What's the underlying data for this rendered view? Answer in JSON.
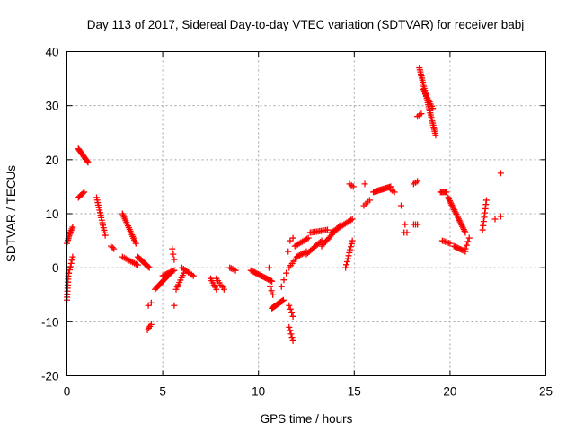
{
  "chart_data": {
    "type": "scatter",
    "title": "Day 113 of 2017, Sidereal Day-to-day VTEC variation (SDTVAR) for receiver babj",
    "xlabel": "GPS time / hours",
    "ylabel": "SDTVAR / TECUs",
    "xlim": [
      0,
      25
    ],
    "ylim": [
      -20,
      40
    ],
    "xticks": [
      0,
      5,
      10,
      15,
      20,
      25
    ],
    "yticks": [
      -20,
      -10,
      0,
      10,
      20,
      30,
      40
    ],
    "xtick_labels": [
      "0",
      "5",
      "10",
      "15",
      "20",
      "25"
    ],
    "ytick_labels": [
      "-20",
      "-10",
      "0",
      "10",
      "20",
      "30",
      "40"
    ],
    "grid": true,
    "marker": "plus",
    "color": "#ff0000",
    "segments": [
      {
        "x0": 0.0,
        "x1": 0.08,
        "y0": -6,
        "y1": -1,
        "n": 10
      },
      {
        "x0": 0.0,
        "x1": 0.12,
        "y0": 4.5,
        "y1": 6,
        "n": 6
      },
      {
        "x0": 0.1,
        "x1": 0.3,
        "y0": 6,
        "y1": 7.5,
        "n": 6
      },
      {
        "x0": 0.1,
        "x1": 0.3,
        "y0": -1,
        "y1": 2,
        "n": 6
      },
      {
        "x0": 0.6,
        "x1": 0.9,
        "y0": 13,
        "y1": 14,
        "n": 6
      },
      {
        "x0": 0.6,
        "x1": 1.1,
        "y0": 22,
        "y1": 19.5,
        "n": 14
      },
      {
        "x0": 1.55,
        "x1": 2.0,
        "y0": 13,
        "y1": 6,
        "n": 16
      },
      {
        "x0": 2.3,
        "x1": 2.45,
        "y0": 4,
        "y1": 3.5,
        "n": 3
      },
      {
        "x0": 2.9,
        "x1": 3.6,
        "y0": 10,
        "y1": 4.5,
        "n": 18
      },
      {
        "x0": 2.9,
        "x1": 3.7,
        "y0": 2,
        "y1": 0.5,
        "n": 10
      },
      {
        "x0": 3.7,
        "x1": 4.3,
        "y0": 2,
        "y1": 0,
        "n": 12
      },
      {
        "x0": 4.2,
        "x1": 4.4,
        "y0": -11.5,
        "y1": -10.5,
        "n": 4
      },
      {
        "x0": 4.25,
        "x1": 4.4,
        "y0": -7,
        "y1": -6.5,
        "n": 2
      },
      {
        "x0": 4.6,
        "x1": 5.4,
        "y0": -4,
        "y1": -1,
        "n": 16
      },
      {
        "x0": 5.0,
        "x1": 5.6,
        "y0": -1.5,
        "y1": -0.5,
        "n": 10
      },
      {
        "x0": 5.5,
        "x1": 5.6,
        "y0": 3.5,
        "y1": 1.5,
        "n": 3
      },
      {
        "x0": 5.55,
        "x1": 5.65,
        "y0": -7,
        "y1": -7,
        "n": 1
      },
      {
        "x0": 5.7,
        "x1": 6.1,
        "y0": -4,
        "y1": -1,
        "n": 8
      },
      {
        "x0": 6.0,
        "x1": 6.6,
        "y0": 0,
        "y1": -1.5,
        "n": 8
      },
      {
        "x0": 7.5,
        "x1": 7.8,
        "y0": -2,
        "y1": -4,
        "n": 6
      },
      {
        "x0": 7.8,
        "x1": 8.2,
        "y0": -2,
        "y1": -4,
        "n": 6
      },
      {
        "x0": 8.5,
        "x1": 8.8,
        "y0": 0,
        "y1": -0.5,
        "n": 5
      },
      {
        "x0": 9.6,
        "x1": 10.7,
        "y0": -0.5,
        "y1": -2.5,
        "n": 18
      },
      {
        "x0": 10.5,
        "x1": 10.6,
        "y0": 0,
        "y1": 0,
        "n": 1
      },
      {
        "x0": 10.6,
        "x1": 10.75,
        "y0": -3.5,
        "y1": -5,
        "n": 3
      },
      {
        "x0": 10.7,
        "x1": 11.3,
        "y0": -7.5,
        "y1": -6,
        "n": 14
      },
      {
        "x0": 11.2,
        "x1": 11.45,
        "y0": -3.5,
        "y1": -1,
        "n": 3
      },
      {
        "x0": 11.5,
        "x1": 11.6,
        "y0": 3,
        "y1": 3,
        "n": 1
      },
      {
        "x0": 11.6,
        "x1": 11.8,
        "y0": -7,
        "y1": -9,
        "n": 4
      },
      {
        "x0": 11.6,
        "x1": 11.8,
        "y0": -11,
        "y1": -13.5,
        "n": 5
      },
      {
        "x0": 11.6,
        "x1": 12.0,
        "y0": 0,
        "y1": 2,
        "n": 6
      },
      {
        "x0": 11.65,
        "x1": 11.8,
        "y0": 5,
        "y1": 5.5,
        "n": 2
      },
      {
        "x0": 12.0,
        "x1": 12.5,
        "y0": 2,
        "y1": 3,
        "n": 8
      },
      {
        "x0": 11.9,
        "x1": 12.6,
        "y0": 4,
        "y1": 5.5,
        "n": 10
      },
      {
        "x0": 12.5,
        "x1": 13.3,
        "y0": 2.5,
        "y1": 5,
        "n": 12
      },
      {
        "x0": 12.7,
        "x1": 13.6,
        "y0": 6.5,
        "y1": 7,
        "n": 12
      },
      {
        "x0": 13.3,
        "x1": 14.3,
        "y0": 4,
        "y1": 8,
        "n": 16
      },
      {
        "x0": 13.8,
        "x1": 14.9,
        "y0": 6.5,
        "y1": 9,
        "n": 16
      },
      {
        "x0": 14.55,
        "x1": 14.9,
        "y0": 0,
        "y1": 5,
        "n": 10
      },
      {
        "x0": 14.75,
        "x1": 14.95,
        "y0": 15.5,
        "y1": 15,
        "n": 3
      },
      {
        "x0": 15.5,
        "x1": 15.6,
        "y0": 15.5,
        "y1": 15.5,
        "n": 1
      },
      {
        "x0": 15.5,
        "x1": 15.8,
        "y0": 11.5,
        "y1": 12.5,
        "n": 4
      },
      {
        "x0": 16.0,
        "x1": 16.9,
        "y0": 14,
        "y1": 15,
        "n": 16
      },
      {
        "x0": 16.9,
        "x1": 17.1,
        "y0": 14.5,
        "y1": 14,
        "n": 3
      },
      {
        "x0": 17.4,
        "x1": 17.5,
        "y0": 11.5,
        "y1": 11.5,
        "n": 1
      },
      {
        "x0": 17.6,
        "x1": 17.7,
        "y0": 8,
        "y1": 8,
        "n": 1
      },
      {
        "x0": 17.6,
        "x1": 17.75,
        "y0": 6.5,
        "y1": 6.5,
        "n": 2
      },
      {
        "x0": 18.1,
        "x1": 18.3,
        "y0": 8,
        "y1": 8,
        "n": 3
      },
      {
        "x0": 18.1,
        "x1": 18.3,
        "y0": 15.5,
        "y1": 16,
        "n": 3
      },
      {
        "x0": 18.3,
        "x1": 18.5,
        "y0": 28,
        "y1": 28.5,
        "n": 3
      },
      {
        "x0": 18.4,
        "x1": 19.25,
        "y0": 37,
        "y1": 24.5,
        "n": 34
      },
      {
        "x0": 18.6,
        "x1": 19.1,
        "y0": 33,
        "y1": 29.5,
        "n": 10
      },
      {
        "x0": 19.5,
        "x1": 19.8,
        "y0": 14,
        "y1": 14,
        "n": 6
      },
      {
        "x0": 19.6,
        "x1": 20.0,
        "y0": 5,
        "y1": 4.5,
        "n": 6
      },
      {
        "x0": 19.9,
        "x1": 20.8,
        "y0": 13,
        "y1": 6.5,
        "n": 24
      },
      {
        "x0": 20.2,
        "x1": 20.8,
        "y0": 4,
        "y1": 3,
        "n": 10
      },
      {
        "x0": 20.8,
        "x1": 21.0,
        "y0": 3.5,
        "y1": 5.5,
        "n": 4
      },
      {
        "x0": 21.7,
        "x1": 21.9,
        "y0": 7,
        "y1": 12.5,
        "n": 8
      },
      {
        "x0": 22.3,
        "x1": 22.4,
        "y0": 9,
        "y1": 9,
        "n": 1
      },
      {
        "x0": 22.6,
        "x1": 22.7,
        "y0": 9.5,
        "y1": 9.5,
        "n": 1
      },
      {
        "x0": 22.6,
        "x1": 22.7,
        "y0": 17.5,
        "y1": 17.5,
        "n": 1
      }
    ]
  }
}
